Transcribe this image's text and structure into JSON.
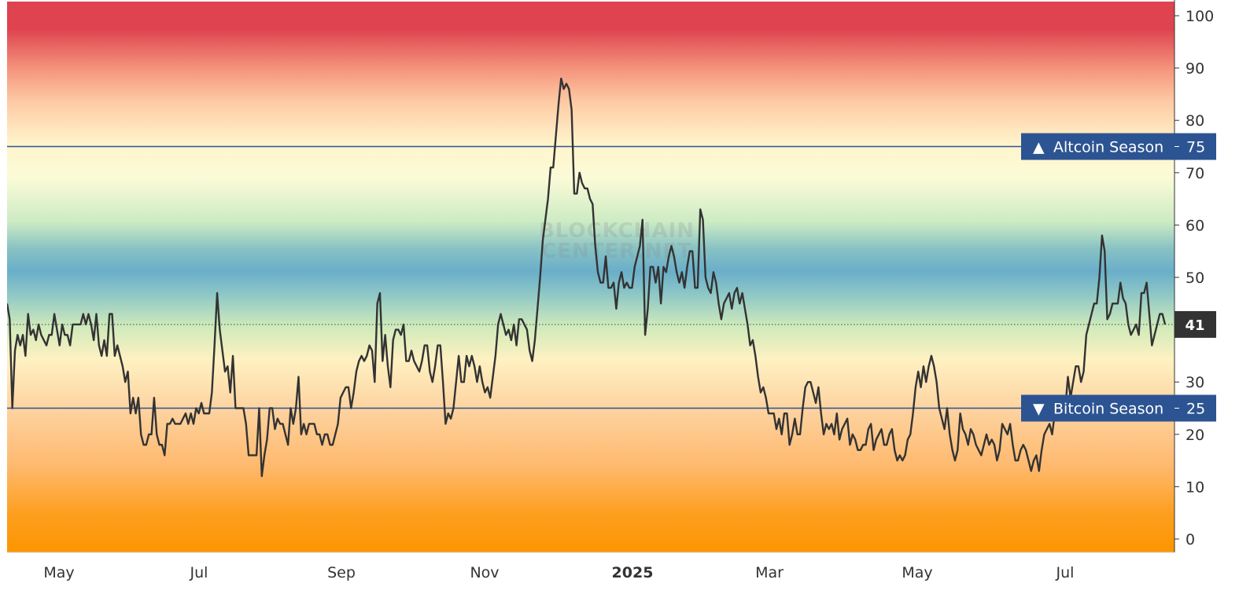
{
  "chart_data": {
    "type": "line",
    "x_tick_labels": [
      "May",
      "Jul",
      "Sep",
      "Nov",
      "2025",
      "Mar",
      "May",
      "Jul"
    ],
    "x_tick_bold": "2025",
    "y_ticks": [
      0,
      10,
      20,
      30,
      40,
      50,
      60,
      70,
      80,
      90,
      100
    ],
    "ylim": [
      0,
      101
    ],
    "current_value": "41",
    "threshold_lines": [
      {
        "label": "Altcoin Season",
        "arrow": "▲",
        "value": 75,
        "value_text": "75"
      },
      {
        "label": "Bitcoin Season",
        "arrow": "▼",
        "value": 25,
        "value_text": "25"
      }
    ],
    "watermark": [
      "BLOCKCHAIN",
      "CENTER.NET"
    ],
    "colors": {
      "line": "#333333",
      "threshold": "#2d5492",
      "badge": "#2d5492",
      "current_badge": "#333333",
      "band_top": "#de434f",
      "band_mid": "#6aaec9",
      "band_bottom": "#fd9500"
    },
    "series": [
      {
        "values": [
          45,
          42,
          25,
          36,
          39,
          37,
          39,
          35,
          43,
          39,
          40,
          38,
          41,
          39,
          38,
          37,
          39,
          39,
          43,
          40,
          37,
          41,
          39,
          39,
          37,
          41,
          41,
          41,
          41,
          43,
          41,
          43,
          41,
          38,
          43,
          37,
          35,
          38,
          35,
          43,
          43,
          35,
          37,
          35,
          33,
          30,
          32,
          24,
          27,
          24,
          27,
          20,
          18,
          18,
          20,
          20,
          27,
          20,
          18,
          18,
          16,
          22,
          22,
          23,
          22,
          22,
          22,
          23,
          24,
          22,
          24,
          22,
          25,
          24,
          26,
          24,
          24,
          24,
          28,
          37,
          47,
          40,
          36,
          32,
          33,
          28,
          35,
          25,
          25,
          25,
          25,
          22,
          16,
          16,
          16,
          16,
          25,
          12,
          16,
          19,
          25,
          25,
          21,
          23,
          22,
          22,
          20,
          18,
          25,
          22,
          25,
          31,
          20,
          22,
          20,
          22,
          22,
          22,
          20,
          20,
          18,
          20,
          20,
          18,
          18,
          20,
          22,
          27,
          28,
          29,
          29,
          25,
          28,
          32,
          34,
          35,
          34,
          35,
          37,
          36,
          30,
          45,
          47,
          34,
          39,
          33,
          29,
          38,
          40,
          40,
          39,
          41,
          34,
          34,
          36,
          34,
          33,
          32,
          34,
          37,
          37,
          32,
          30,
          33,
          37,
          37,
          30,
          22,
          24,
          23,
          25,
          30,
          35,
          30,
          30,
          35,
          33,
          35,
          33,
          30,
          33,
          30,
          28,
          29,
          27,
          31,
          35,
          41,
          43,
          41,
          39,
          40,
          38,
          41,
          37,
          42,
          42,
          41,
          40,
          36,
          34,
          38,
          44,
          50,
          57,
          61,
          65,
          71,
          71,
          77,
          83,
          88,
          86,
          87,
          86,
          82,
          66,
          66,
          70,
          68,
          67,
          67,
          65,
          64,
          56,
          51,
          49,
          49,
          54,
          48,
          48,
          49,
          44,
          49,
          51,
          48,
          49,
          48,
          48,
          52,
          54,
          56,
          61,
          39,
          44,
          52,
          52,
          49,
          52,
          45,
          52,
          51,
          54,
          56,
          54,
          51,
          49,
          51,
          48,
          52,
          55,
          55,
          48,
          48,
          63,
          61,
          50,
          48,
          47,
          51,
          49,
          45,
          42,
          45,
          46,
          47,
          44,
          47,
          48,
          45,
          47,
          44,
          41,
          37,
          38,
          35,
          31,
          28,
          29,
          27,
          24,
          24,
          24,
          21,
          23,
          20,
          24,
          24,
          18,
          20,
          23,
          20,
          20,
          25,
          29,
          30,
          30,
          28,
          26,
          29,
          24,
          20,
          22,
          21,
          22,
          20,
          24,
          19,
          21,
          22,
          23,
          18,
          20,
          19,
          17,
          17,
          18,
          18,
          21,
          22,
          17,
          19,
          20,
          21,
          18,
          18,
          20,
          21,
          17,
          15,
          16,
          15,
          16,
          19,
          20,
          24,
          29,
          32,
          29,
          33,
          30,
          33,
          35,
          33,
          30,
          25,
          23,
          21,
          25,
          20,
          17,
          15,
          17,
          24,
          21,
          20,
          18,
          21,
          20,
          18,
          17,
          16,
          18,
          20,
          18,
          19,
          18,
          15,
          17,
          22,
          21,
          20,
          22,
          18,
          15,
          15,
          17,
          18,
          17,
          15,
          13,
          15,
          16,
          13,
          17,
          20,
          21,
          22,
          20,
          24,
          25,
          26,
          25,
          25,
          31,
          27,
          30,
          33,
          33,
          30,
          32,
          39,
          41,
          43,
          45,
          45,
          50,
          58,
          55,
          42,
          43,
          45,
          45,
          45,
          49,
          46,
          45,
          41,
          39,
          40,
          41,
          39,
          47,
          47,
          49,
          43,
          37,
          39,
          41,
          43,
          43,
          41
        ]
      }
    ]
  }
}
